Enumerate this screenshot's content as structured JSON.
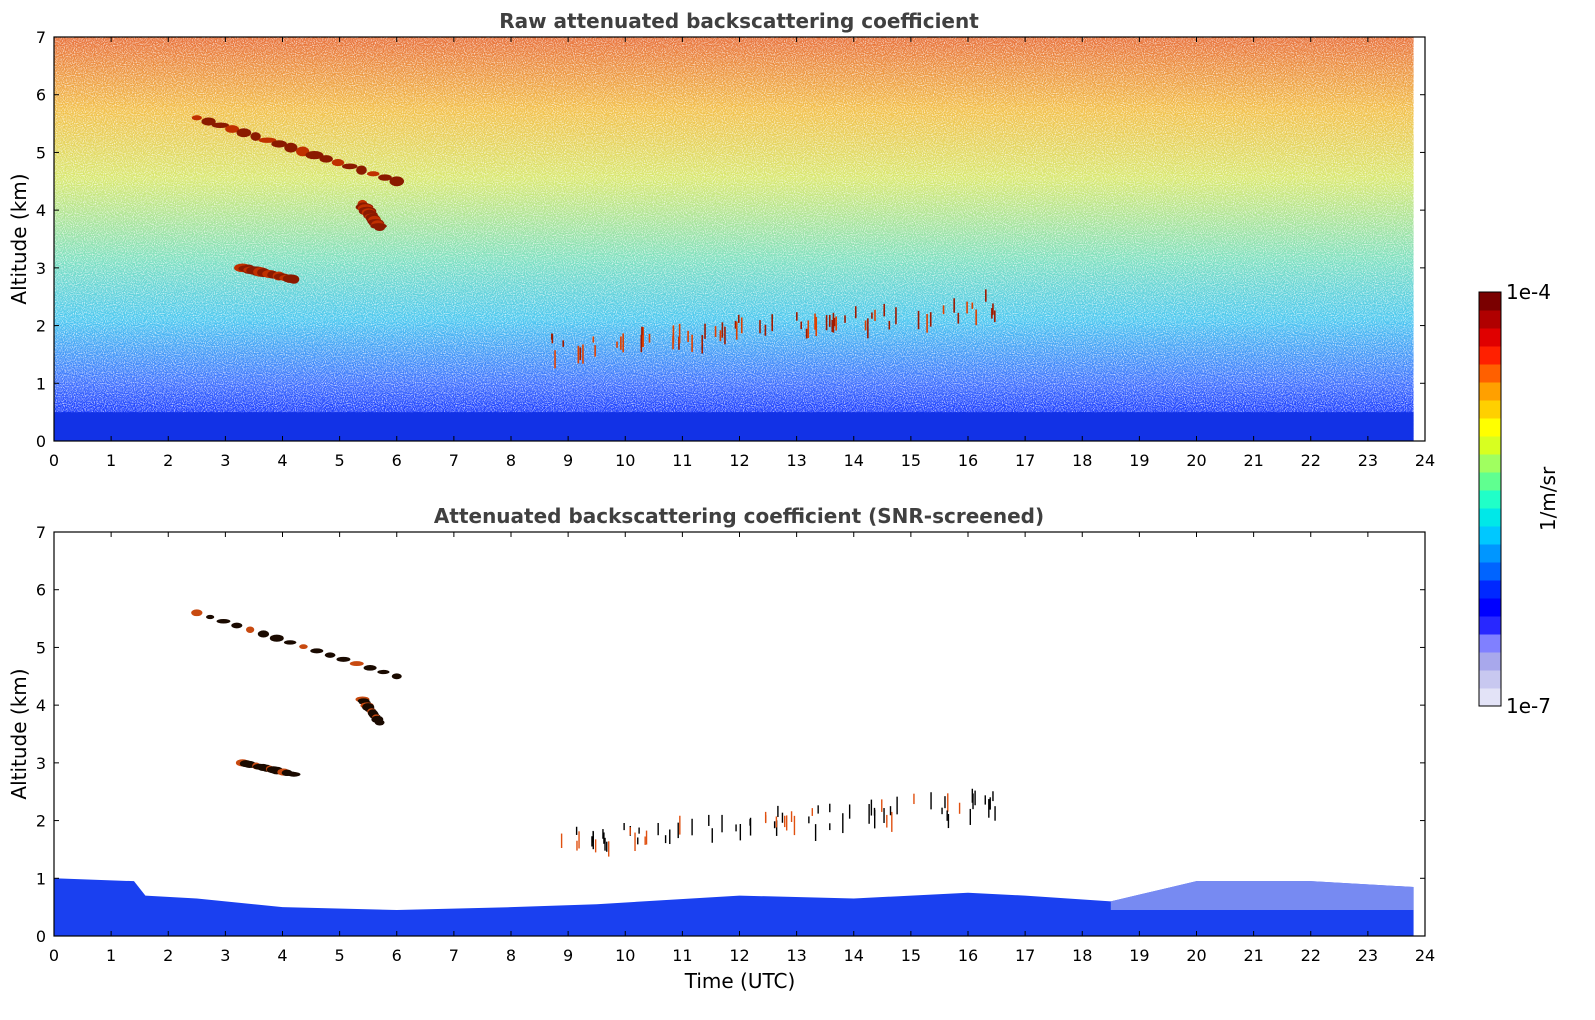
{
  "chart_data": [
    {
      "type": "heatmap",
      "title": "Raw attenuated backscattering coefficient",
      "xlabel": "",
      "ylabel": "Altitude (km)",
      "xlim": [
        0,
        24
      ],
      "ylim": [
        0,
        7
      ],
      "xticks": [
        "0",
        "1",
        "2",
        "3",
        "4",
        "5",
        "6",
        "7",
        "8",
        "9",
        "10",
        "11",
        "12",
        "13",
        "14",
        "15",
        "16",
        "17",
        "18",
        "19",
        "20",
        "21",
        "22",
        "23",
        "24"
      ],
      "yticks": [
        "0",
        "1",
        "2",
        "3",
        "4",
        "5",
        "6",
        "7"
      ],
      "data_extent_x": [
        0,
        23.8
      ],
      "features": {
        "boundary_layer_top_km": 0.5,
        "aerosol_layers": [
          {
            "time_start": 2.5,
            "time_end": 6.0,
            "alt_start": 5.6,
            "alt_end": 4.5
          },
          {
            "time_start": 5.4,
            "time_end": 5.7,
            "alt_start": 4.1,
            "alt_end": 3.7
          },
          {
            "time_start": 3.3,
            "time_end": 4.2,
            "alt_start": 3.0,
            "alt_end": 2.8
          }
        ],
        "cloud_band": {
          "time_start": 8.7,
          "time_end": 16.5,
          "alt_min": 1.2,
          "alt_max": 2.6
        }
      }
    },
    {
      "type": "heatmap",
      "title": "Attenuated backscattering coefficient (SNR-screened)",
      "xlabel": "Time (UTC)",
      "ylabel": "Altitude (km)",
      "xlim": [
        0,
        24
      ],
      "ylim": [
        0,
        7
      ],
      "xticks": [
        "0",
        "1",
        "2",
        "3",
        "4",
        "5",
        "6",
        "7",
        "8",
        "9",
        "10",
        "11",
        "12",
        "13",
        "14",
        "15",
        "16",
        "17",
        "18",
        "19",
        "20",
        "21",
        "22",
        "23",
        "24"
      ],
      "yticks": [
        "0",
        "1",
        "2",
        "3",
        "4",
        "5",
        "6",
        "7"
      ],
      "data_extent_x": [
        0,
        23.8
      ],
      "boundary_layer_top_km": [
        [
          0,
          1.0
        ],
        [
          1.4,
          0.95
        ],
        [
          1.6,
          0.7
        ],
        [
          2.5,
          0.65
        ],
        [
          4,
          0.5
        ],
        [
          6,
          0.45
        ],
        [
          8,
          0.5
        ],
        [
          9.5,
          0.55
        ],
        [
          12,
          0.7
        ],
        [
          14,
          0.65
        ],
        [
          16,
          0.75
        ],
        [
          17,
          0.7
        ],
        [
          18.5,
          0.6
        ],
        [
          20,
          0.95
        ],
        [
          22,
          0.95
        ],
        [
          23.8,
          0.85
        ]
      ]
    }
  ],
  "colorbar": {
    "label": "1/m/sr",
    "max_label": "1e-4",
    "min_label": "1e-7",
    "colors": [
      "#e3e3f7",
      "#c8c8f0",
      "#a8a8ec",
      "#8080ff",
      "#2828ff",
      "#0000ff",
      "#0028ff",
      "#0064ff",
      "#0096ff",
      "#00c8ff",
      "#00e8e8",
      "#20ffc8",
      "#60ff90",
      "#a0ff60",
      "#d8ff20",
      "#ffff00",
      "#ffd000",
      "#ffa000",
      "#ff6000",
      "#ff2000",
      "#e00000",
      "#b00000",
      "#7a0000"
    ]
  }
}
